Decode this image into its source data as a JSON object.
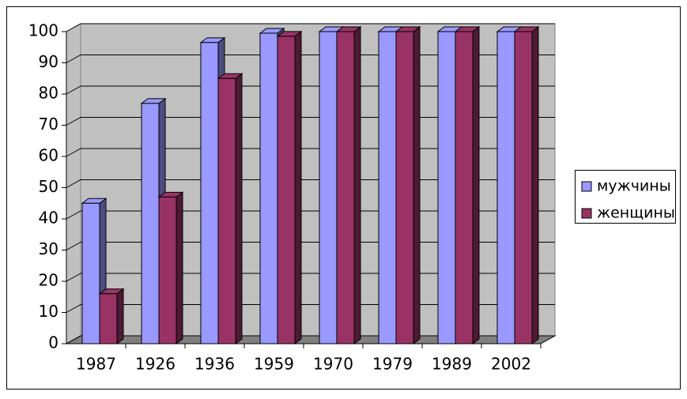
{
  "chart_data": {
    "type": "bar3d",
    "categories": [
      "1987",
      "1926",
      "1936",
      "1959",
      "1970",
      "1979",
      "1989",
      "2002"
    ],
    "series": [
      {
        "name": "мужчины",
        "color": "#9999ff",
        "values": [
          45,
          77,
          96.5,
          99.5,
          100,
          100,
          100,
          100
        ]
      },
      {
        "name": "женщины",
        "color": "#993366",
        "values": [
          16,
          47,
          85,
          98.5,
          100,
          100,
          100,
          100
        ]
      }
    ],
    "ylim": [
      0,
      100
    ],
    "yticks": [
      0,
      10,
      20,
      30,
      40,
      50,
      60,
      70,
      80,
      90,
      100
    ],
    "grid": true,
    "legend": "right"
  }
}
